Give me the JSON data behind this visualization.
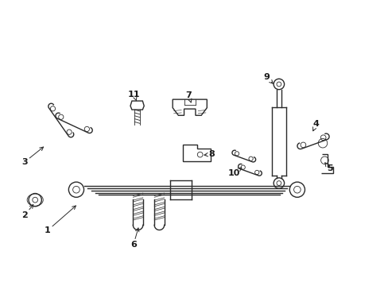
{
  "background_color": "#ffffff",
  "line_color": "#2a2a2a",
  "figsize": [
    4.89,
    3.6
  ],
  "dpi": 100,
  "lw": 1.0,
  "lw_thin": 0.6,
  "lw_thick": 1.3,
  "label_fontsize": 8,
  "arrow_color": "#2a2a2a",
  "xlim": [
    0,
    10
  ],
  "ylim": [
    0,
    7.35
  ],
  "label_configs": [
    [
      "1",
      [
        1.15,
        1.38
      ],
      [
        1.95,
        2.08
      ]
    ],
    [
      "2",
      [
        0.55,
        1.78
      ],
      [
        0.82,
        2.12
      ]
    ],
    [
      "3",
      [
        0.55,
        3.18
      ],
      [
        1.1,
        3.62
      ]
    ],
    [
      "4",
      [
        8.2,
        4.18
      ],
      [
        8.08,
        3.92
      ]
    ],
    [
      "5",
      [
        8.55,
        3.0
      ],
      [
        8.38,
        3.22
      ]
    ],
    [
      "6",
      [
        3.4,
        1.0
      ],
      [
        3.55,
        1.52
      ]
    ],
    [
      "7",
      [
        4.85,
        4.92
      ],
      [
        4.92,
        4.72
      ]
    ],
    [
      "8",
      [
        5.45,
        3.38
      ],
      [
        5.18,
        3.35
      ]
    ],
    [
      "9",
      [
        6.9,
        5.4
      ],
      [
        7.12,
        5.18
      ]
    ],
    [
      "10",
      [
        6.05,
        2.88
      ],
      [
        6.3,
        3.08
      ]
    ],
    [
      "11",
      [
        3.42,
        4.95
      ],
      [
        3.5,
        4.72
      ]
    ]
  ]
}
